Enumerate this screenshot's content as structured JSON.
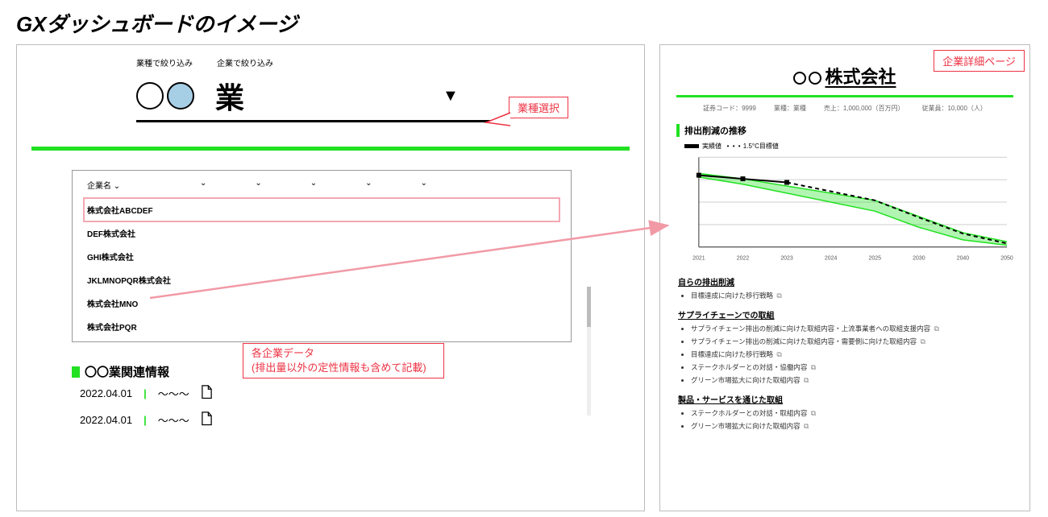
{
  "title": "GXダッシュボードのイメージ",
  "left": {
    "filter_by_industry": "業種で絞り込み",
    "filter_by_company": "企業で絞り込み",
    "industry_word": "業",
    "table": {
      "header0": "企業名",
      "rows": [
        "株式会社ABCDEF",
        "DEF株式会社",
        "GHI株式会社",
        "JKLMNOPQR株式会社",
        "株式会社MNO",
        "株式会社PQR"
      ]
    },
    "related_heading": "〇〇業関連情報",
    "news": [
      {
        "date": "2022.04.01",
        "text": "～～～"
      },
      {
        "date": "2022.04.01",
        "text": "～～～"
      }
    ]
  },
  "callouts": {
    "industry_select": "業種選択",
    "company_data": "各企業データ\n(排出量以外の定性情報も含めて記載)",
    "detail_page": "企業詳細ページ"
  },
  "right": {
    "company_name": "株式会社",
    "meta": {
      "code_label": "証券コード：",
      "code_val": "9999",
      "ind_label": "業種：",
      "ind_val": "業種",
      "rev_label": "売上：",
      "rev_val": "1,000,000（百万円）",
      "emp_label": "従業員：",
      "emp_val": "10,000（人）"
    },
    "chart": {
      "title": "排出削減の推移",
      "legend_actual": "実績値",
      "legend_target": "1.5°C目標値",
      "x_ticks": [
        "2021",
        "2022",
        "2023",
        "2024",
        "2025",
        "2030",
        "2040",
        "2050"
      ],
      "y_max": 100,
      "actual": {
        "color": "#000000",
        "width": 2,
        "points": [
          [
            0,
            80
          ],
          [
            1,
            76
          ],
          [
            2,
            72
          ]
        ]
      },
      "band": {
        "color": "#22e122",
        "opacity": 0.35,
        "upper": [
          [
            0,
            82
          ],
          [
            1,
            76
          ],
          [
            2,
            68
          ],
          [
            3,
            60
          ],
          [
            4,
            52
          ],
          [
            5,
            34
          ],
          [
            6,
            16
          ],
          [
            7,
            6
          ]
        ],
        "lower": [
          [
            0,
            78
          ],
          [
            1,
            70
          ],
          [
            2,
            60
          ],
          [
            3,
            50
          ],
          [
            4,
            40
          ],
          [
            5,
            22
          ],
          [
            6,
            8
          ],
          [
            7,
            2
          ]
        ]
      },
      "dashed": {
        "color": "#000000",
        "dash": "5 4",
        "points": [
          [
            2,
            72
          ],
          [
            3,
            62
          ],
          [
            4,
            52
          ],
          [
            5,
            33
          ],
          [
            6,
            15
          ],
          [
            7,
            4
          ]
        ]
      },
      "grid_color": "#cfcfcf",
      "axis_color": "#333333"
    },
    "sections": [
      {
        "head": "自らの排出削減",
        "items": [
          "目標達成に向けた移行戦略"
        ]
      },
      {
        "head": "サプライチェーンでの取組",
        "items": [
          "サプライチェーン排出の削減に向けた取組内容・上流事業者への取組支援内容",
          "サプライチェーン排出の削減に向けた取組内容・需要側に向けた取組内容",
          "目標達成に向けた移行戦略",
          "ステークホルダーとの対話・協働内容",
          "グリーン市場拡大に向けた取組内容"
        ]
      },
      {
        "head": "製品・サービスを通じた取組",
        "items": [
          "ステークホルダーとの対話・取組内容",
          "グリーン市場拡大に向けた取組内容"
        ]
      }
    ]
  }
}
